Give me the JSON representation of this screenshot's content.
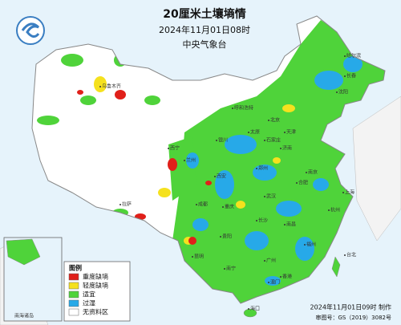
{
  "header": {
    "title": "20厘米土壤墒情",
    "date": "2024年11月01日08时",
    "issuer": "中央气象台"
  },
  "legend": {
    "title": "图例",
    "items": [
      {
        "label": "重度缺墒",
        "color": "#e0201a"
      },
      {
        "label": "轻度缺墒",
        "color": "#f5e11e"
      },
      {
        "label": "适宜",
        "color": "#4fd33a"
      },
      {
        "label": "过湿",
        "color": "#27a9e8"
      },
      {
        "label": "无资料区",
        "color": "#ffffff"
      }
    ]
  },
  "inset": {
    "label": "南海诸岛"
  },
  "cities": [
    "北京",
    "天津",
    "济南",
    "郑州",
    "西安",
    "武汉",
    "上海",
    "杭州",
    "长沙",
    "南昌",
    "福州",
    "广州",
    "南宁",
    "昆明",
    "成都",
    "重庆",
    "贵阳",
    "兰州",
    "银川",
    "太原",
    "石家庄",
    "沈阳",
    "长春",
    "哈尔滨",
    "拉萨",
    "西宁",
    "乌鲁木齐",
    "呼和浩特",
    "合肥",
    "南京",
    "台北",
    "海口",
    "香港",
    "澳门"
  ],
  "footer": {
    "made": "2024年11月01日09时 制作",
    "approval": "审图号：GS（2019）3082号"
  }
}
